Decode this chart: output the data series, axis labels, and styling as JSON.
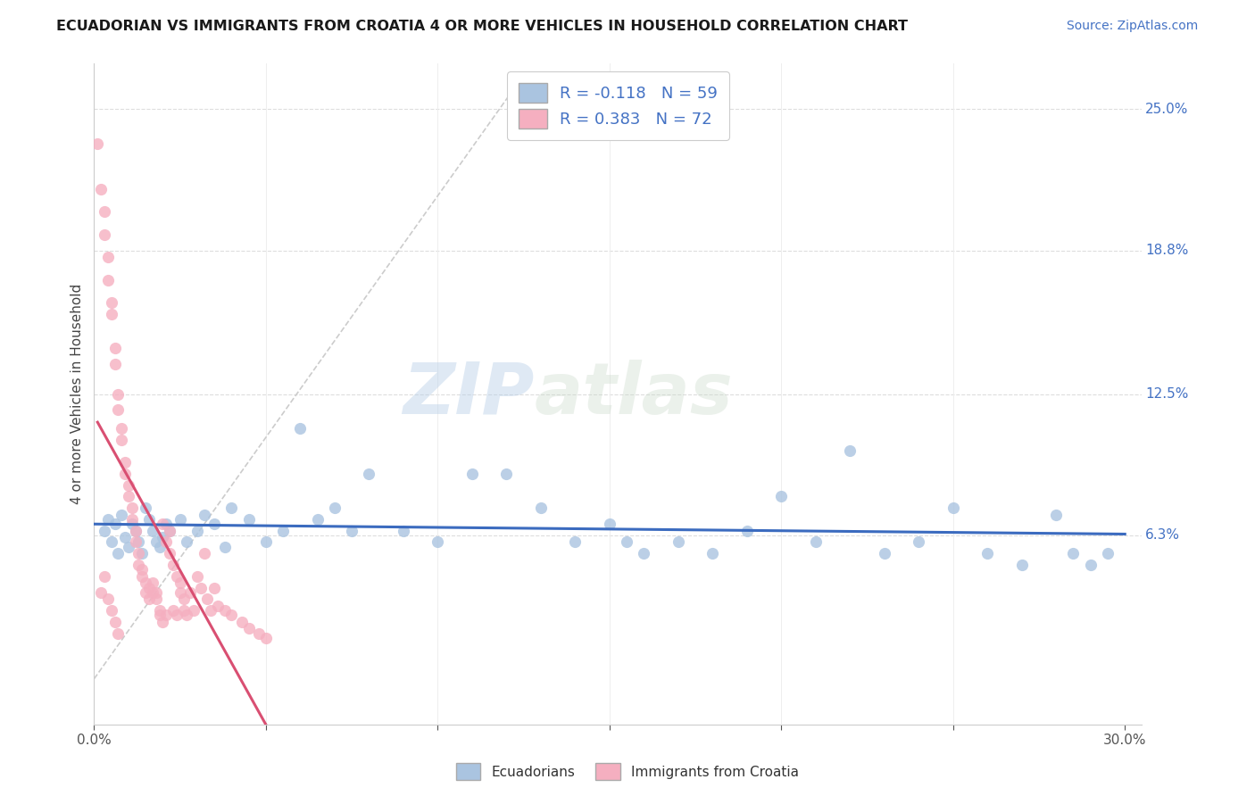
{
  "title": "ECUADORIAN VS IMMIGRANTS FROM CROATIA 4 OR MORE VEHICLES IN HOUSEHOLD CORRELATION CHART",
  "source_text": "Source: ZipAtlas.com",
  "ylabel": "4 or more Vehicles in Household",
  "xmin": 0.0,
  "xmax": 0.3,
  "ymin": -0.02,
  "ymax": 0.27,
  "y_ticks": [
    0.063,
    0.125,
    0.188,
    0.25
  ],
  "y_tick_labels": [
    "6.3%",
    "12.5%",
    "18.8%",
    "25.0%"
  ],
  "blue_R": -0.118,
  "blue_N": 59,
  "pink_R": 0.383,
  "pink_N": 72,
  "blue_color": "#aac4e0",
  "pink_color": "#f5afc0",
  "blue_line_color": "#3b6bbf",
  "pink_line_color": "#d94f72",
  "legend_label_blue": "Ecuadorians",
  "legend_label_pink": "Immigrants from Croatia",
  "watermark_zip": "ZIP",
  "watermark_atlas": "atlas",
  "blue_scatter_x": [
    0.003,
    0.004,
    0.005,
    0.006,
    0.007,
    0.008,
    0.009,
    0.01,
    0.011,
    0.012,
    0.013,
    0.014,
    0.015,
    0.016,
    0.017,
    0.018,
    0.019,
    0.02,
    0.021,
    0.022,
    0.025,
    0.027,
    0.03,
    0.032,
    0.035,
    0.038,
    0.04,
    0.045,
    0.05,
    0.055,
    0.06,
    0.065,
    0.07,
    0.075,
    0.08,
    0.09,
    0.1,
    0.11,
    0.12,
    0.13,
    0.14,
    0.15,
    0.155,
    0.16,
    0.17,
    0.18,
    0.19,
    0.2,
    0.21,
    0.22,
    0.23,
    0.24,
    0.25,
    0.26,
    0.27,
    0.28,
    0.285,
    0.29,
    0.295
  ],
  "blue_scatter_y": [
    0.065,
    0.07,
    0.06,
    0.068,
    0.055,
    0.072,
    0.062,
    0.058,
    0.068,
    0.065,
    0.06,
    0.055,
    0.075,
    0.07,
    0.065,
    0.06,
    0.058,
    0.062,
    0.068,
    0.065,
    0.07,
    0.06,
    0.065,
    0.072,
    0.068,
    0.058,
    0.075,
    0.07,
    0.06,
    0.065,
    0.11,
    0.07,
    0.075,
    0.065,
    0.09,
    0.065,
    0.06,
    0.09,
    0.09,
    0.075,
    0.06,
    0.068,
    0.06,
    0.055,
    0.06,
    0.055,
    0.065,
    0.08,
    0.06,
    0.1,
    0.055,
    0.06,
    0.075,
    0.055,
    0.05,
    0.072,
    0.055,
    0.05,
    0.055
  ],
  "pink_scatter_x": [
    0.001,
    0.002,
    0.003,
    0.003,
    0.004,
    0.004,
    0.005,
    0.005,
    0.006,
    0.006,
    0.007,
    0.007,
    0.008,
    0.008,
    0.009,
    0.009,
    0.01,
    0.01,
    0.011,
    0.011,
    0.012,
    0.012,
    0.013,
    0.013,
    0.014,
    0.014,
    0.015,
    0.015,
    0.016,
    0.016,
    0.017,
    0.017,
    0.018,
    0.018,
    0.019,
    0.019,
    0.02,
    0.02,
    0.021,
    0.021,
    0.022,
    0.022,
    0.023,
    0.023,
    0.024,
    0.024,
    0.025,
    0.025,
    0.026,
    0.026,
    0.027,
    0.028,
    0.029,
    0.03,
    0.031,
    0.032,
    0.033,
    0.034,
    0.035,
    0.036,
    0.038,
    0.04,
    0.043,
    0.045,
    0.048,
    0.05,
    0.002,
    0.003,
    0.004,
    0.005,
    0.006,
    0.007
  ],
  "pink_scatter_y": [
    0.235,
    0.215,
    0.195,
    0.205,
    0.185,
    0.175,
    0.165,
    0.16,
    0.145,
    0.138,
    0.125,
    0.118,
    0.11,
    0.105,
    0.095,
    0.09,
    0.085,
    0.08,
    0.075,
    0.07,
    0.065,
    0.06,
    0.055,
    0.05,
    0.048,
    0.045,
    0.042,
    0.038,
    0.035,
    0.04,
    0.038,
    0.042,
    0.038,
    0.035,
    0.03,
    0.028,
    0.068,
    0.025,
    0.06,
    0.028,
    0.055,
    0.065,
    0.05,
    0.03,
    0.045,
    0.028,
    0.042,
    0.038,
    0.035,
    0.03,
    0.028,
    0.038,
    0.03,
    0.045,
    0.04,
    0.055,
    0.035,
    0.03,
    0.04,
    0.032,
    0.03,
    0.028,
    0.025,
    0.022,
    0.02,
    0.018,
    0.038,
    0.045,
    0.035,
    0.03,
    0.025,
    0.02
  ],
  "dash_line_x": [
    0.0,
    0.125
  ],
  "dash_line_y": [
    0.0,
    0.265
  ]
}
